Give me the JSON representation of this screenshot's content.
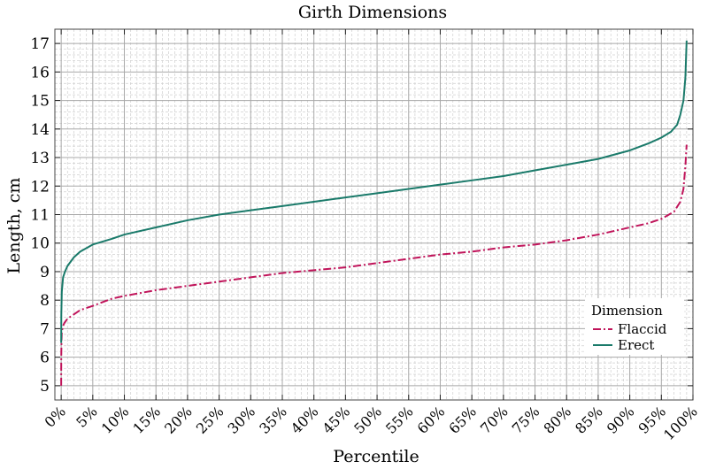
{
  "chart_data": {
    "type": "line",
    "title": "Girth Dimensions",
    "xlabel": "Percentile",
    "ylabel": "Length, cm",
    "xlim": [
      -1,
      100
    ],
    "ylim": [
      4.5,
      17.5
    ],
    "x_ticks": [
      0,
      5,
      10,
      15,
      20,
      25,
      30,
      35,
      40,
      45,
      50,
      55,
      60,
      65,
      70,
      75,
      80,
      85,
      90,
      95,
      100
    ],
    "x_tick_labels": [
      "0%",
      "5%",
      "10%",
      "15%",
      "20%",
      "25%",
      "30%",
      "35%",
      "40%",
      "45%",
      "50%",
      "55%",
      "60%",
      "65%",
      "70%",
      "75%",
      "80%",
      "85%",
      "90%",
      "95%",
      "100%"
    ],
    "y_ticks": [
      5,
      6,
      7,
      8,
      9,
      10,
      11,
      12,
      13,
      14,
      15,
      16,
      17
    ],
    "y_tick_labels": [
      "5",
      "6",
      "7",
      "8",
      "9",
      "10",
      "11",
      "12",
      "13",
      "14",
      "15",
      "16",
      "17"
    ],
    "grid": true,
    "legend": {
      "title": "Dimension",
      "placement": "bottom-right"
    },
    "series": [
      {
        "name": "Flaccid",
        "color": "#c0145a",
        "style": "dash-dot",
        "x": [
          0,
          0.01,
          0.05,
          0.1,
          0.3,
          0.5,
          1,
          2,
          3,
          5,
          8,
          10,
          15,
          20,
          25,
          30,
          35,
          40,
          45,
          50,
          55,
          60,
          65,
          70,
          75,
          80,
          85,
          90,
          93,
          95,
          97,
          98,
          98.5,
          98.8,
          99
        ],
        "y": [
          5.0,
          6.0,
          6.6,
          6.9,
          7.1,
          7.2,
          7.35,
          7.5,
          7.65,
          7.8,
          8.05,
          8.15,
          8.35,
          8.5,
          8.65,
          8.8,
          8.95,
          9.05,
          9.15,
          9.3,
          9.45,
          9.6,
          9.7,
          9.85,
          9.95,
          10.1,
          10.3,
          10.55,
          10.7,
          10.85,
          11.1,
          11.45,
          11.9,
          12.7,
          13.45
        ]
      },
      {
        "name": "Erect",
        "color": "#1a7a6a",
        "style": "solid",
        "x": [
          0,
          0.02,
          0.1,
          0.3,
          0.6,
          1,
          2,
          3,
          5,
          8,
          10,
          15,
          20,
          25,
          30,
          35,
          40,
          45,
          50,
          55,
          60,
          65,
          70,
          75,
          80,
          85,
          90,
          93,
          95,
          96.5,
          97.5,
          98,
          98.5,
          98.8,
          99
        ],
        "y": [
          6.5,
          7.5,
          8.3,
          8.8,
          9.0,
          9.2,
          9.5,
          9.7,
          9.95,
          10.15,
          10.3,
          10.55,
          10.8,
          11.0,
          11.15,
          11.3,
          11.45,
          11.6,
          11.75,
          11.9,
          12.05,
          12.2,
          12.35,
          12.55,
          12.75,
          12.95,
          13.25,
          13.5,
          13.7,
          13.9,
          14.15,
          14.5,
          15.0,
          15.8,
          17.1
        ]
      }
    ]
  }
}
